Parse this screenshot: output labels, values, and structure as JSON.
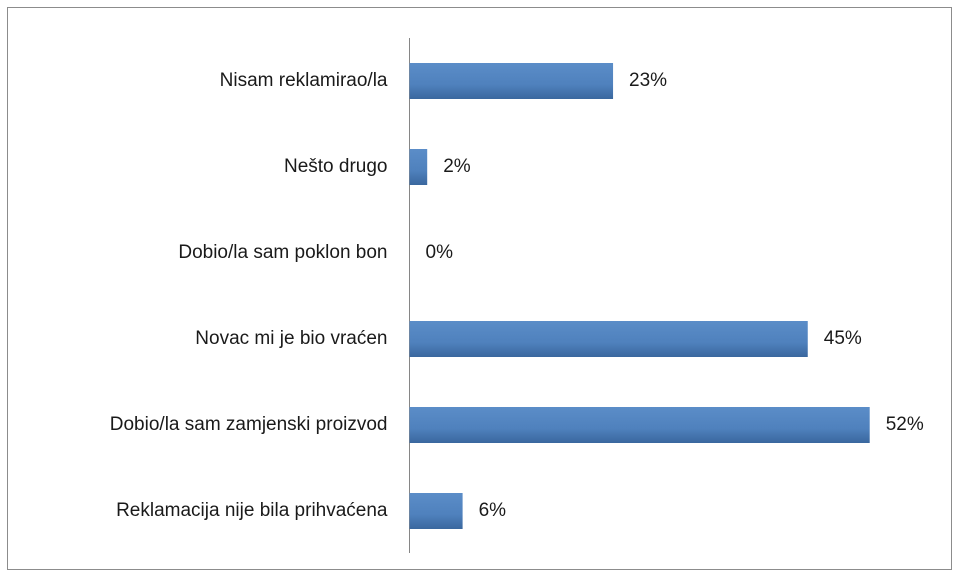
{
  "chart_data": {
    "type": "bar",
    "horizontal": true,
    "categories": [
      "Nisam reklamirao/la",
      "Nešto drugo",
      "Dobio/la sam poklon bon",
      "Novac mi je bio vraćen",
      "Dobio/la sam zamjenski proizvod",
      "Reklamacija nije bila prihvaćena"
    ],
    "values": [
      23,
      2,
      0,
      45,
      52,
      6
    ],
    "value_labels": [
      "23%",
      "2%",
      "0%",
      "45%",
      "52%",
      "6%"
    ],
    "color": "#4f81bd"
  }
}
